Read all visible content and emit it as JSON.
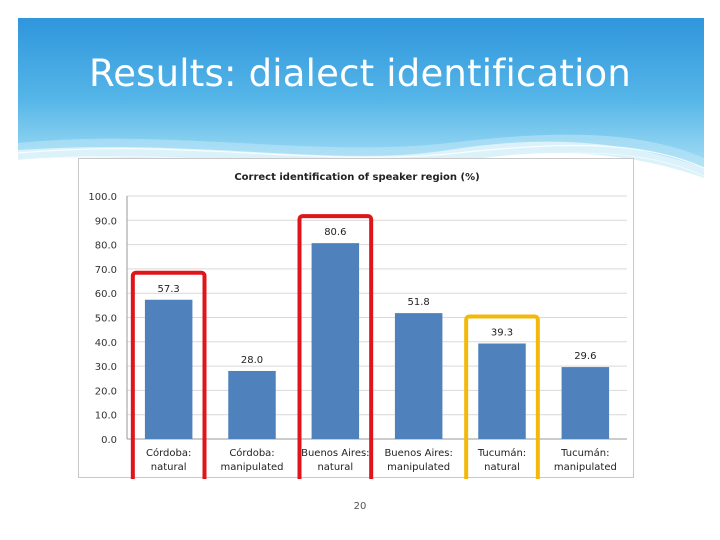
{
  "slide": {
    "title": "Results: dialect identification",
    "page_number": "20"
  },
  "colors": {
    "header_top": "#3fa2df",
    "header_bottom": "#8fd3f2",
    "bar": "#4f81bd",
    "highlight_red": "#e0141b",
    "highlight_yellow": "#f2b90c",
    "grid": "#d9d9d9"
  },
  "chart_data": {
    "type": "bar",
    "title": "Correct identification of speaker region (%)",
    "categories": [
      [
        "Córdoba:",
        "natural"
      ],
      [
        "Córdoba:",
        "manipulated"
      ],
      [
        "Buenos Aires:",
        "natural"
      ],
      [
        "Buenos Aires:",
        "manipulated"
      ],
      [
        "Tucumán:",
        "natural"
      ],
      [
        "Tucumán:",
        "manipulated"
      ]
    ],
    "values": [
      57.3,
      28.0,
      80.6,
      51.8,
      39.3,
      29.6
    ],
    "data_labels": [
      "57.3",
      "28.0",
      "80.6",
      "51.8",
      "39.3",
      "29.6"
    ],
    "y_ticks": [
      "0.0",
      "10.0",
      "20.0",
      "30.0",
      "40.0",
      "50.0",
      "60.0",
      "70.0",
      "80.0",
      "90.0",
      "100.0"
    ],
    "ylim": [
      0,
      100
    ],
    "grid": true,
    "legend": "none",
    "highlights": [
      {
        "category_index": 0,
        "color": "red"
      },
      {
        "category_index": 2,
        "color": "red"
      },
      {
        "category_index": 4,
        "color": "yellow"
      }
    ]
  }
}
